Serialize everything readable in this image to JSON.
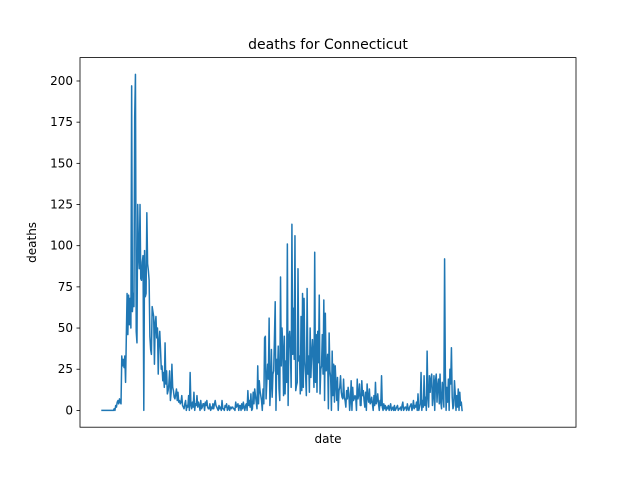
{
  "chart_data": {
    "type": "line",
    "title": "deaths for Connecticut",
    "xlabel": "date",
    "ylabel": "deaths",
    "x_tick_labels": [],
    "ylim": [
      -10.2,
      214.2
    ],
    "xlim": [
      -29,
      624
    ],
    "grid": false,
    "yticks": [
      0,
      25,
      50,
      75,
      100,
      125,
      150,
      175,
      200
    ],
    "color": "#1f77b4",
    "series": [
      {
        "name": "",
        "values": [
          0,
          0,
          0,
          0,
          0,
          0,
          0,
          0,
          0,
          0,
          0,
          0,
          0,
          0,
          0,
          0,
          1,
          0,
          3,
          2,
          5,
          6,
          4,
          7,
          5,
          4,
          33,
          27,
          31,
          26,
          33,
          17,
          45,
          71,
          46,
          70,
          52,
          68,
          50,
          197,
          60,
          71,
          63,
          178,
          204,
          48,
          41,
          125,
          95,
          86,
          125,
          80,
          79,
          90,
          94,
          0,
          97,
          69,
          71,
          120,
          89,
          85,
          79,
          45,
          37,
          34,
          63,
          60,
          57,
          28,
          53,
          57,
          44,
          50,
          22,
          42,
          48,
          37,
          25,
          27,
          18,
          23,
          14,
          41,
          16,
          24,
          10,
          12,
          16,
          24,
          6,
          11,
          28,
          14,
          12,
          8,
          7,
          10,
          13,
          6,
          11,
          5,
          6,
          4,
          5,
          9,
          3,
          2,
          1,
          4,
          6,
          0,
          3,
          2,
          9,
          0,
          23,
          3,
          1,
          5,
          2,
          11,
          0,
          4,
          3,
          9,
          2,
          5,
          3,
          0,
          6,
          1,
          2,
          4,
          4,
          0,
          5,
          3,
          6,
          2,
          1,
          1,
          4,
          0,
          2,
          1,
          4,
          1,
          4,
          6,
          3,
          2,
          1,
          0,
          3,
          1,
          2,
          0,
          6,
          1,
          1,
          0,
          3,
          2,
          4,
          0,
          1,
          3,
          0,
          2,
          1,
          2,
          2,
          1,
          1,
          0,
          5,
          2,
          3,
          4,
          0,
          3,
          3,
          0,
          4,
          1,
          5,
          2,
          0,
          3,
          4,
          0,
          12,
          3,
          6,
          2,
          10,
          0,
          1,
          11,
          4,
          13,
          9,
          5,
          1,
          27,
          4,
          18,
          12,
          9,
          6,
          0,
          13,
          4,
          44,
          45,
          7,
          18,
          28,
          19,
          56,
          3,
          15,
          37,
          8,
          22,
          24,
          44,
          66,
          0,
          31,
          22,
          39,
          13,
          6,
          81,
          27,
          50,
          37,
          9,
          45,
          10,
          30,
          17,
          101,
          3,
          44,
          48,
          37,
          14,
          113,
          34,
          62,
          31,
          106,
          12,
          15,
          17,
          86,
          30,
          33,
          10,
          57,
          12,
          71,
          14,
          68,
          30,
          22,
          9,
          74,
          22,
          33,
          11,
          50,
          20,
          35,
          43,
          30,
          14,
          96,
          17,
          46,
          11,
          48,
          29,
          70,
          10,
          25,
          27,
          46,
          22,
          67,
          6,
          59,
          24,
          25,
          34,
          1,
          47,
          24,
          20,
          0,
          36,
          9,
          28,
          5,
          27,
          16,
          6,
          20,
          0,
          12,
          14,
          21,
          11,
          8,
          7,
          19,
          8,
          6,
          2,
          12,
          7,
          14,
          10,
          0,
          6,
          18,
          0,
          14,
          6,
          7,
          9,
          8,
          0,
          19,
          7,
          10,
          16,
          3,
          3,
          18,
          9,
          12,
          6,
          2,
          11,
          0,
          16,
          8,
          5,
          13,
          4,
          5,
          8,
          4,
          0,
          9,
          3,
          17,
          4,
          6,
          10,
          4,
          0,
          6,
          3,
          21,
          2,
          0,
          4,
          1,
          3,
          0,
          2,
          1,
          3,
          0,
          2,
          4,
          0,
          1,
          2,
          0,
          3,
          0,
          1,
          2,
          3,
          0,
          1,
          1,
          2,
          0,
          3,
          5,
          0,
          1,
          2,
          2,
          0,
          4,
          1,
          0,
          2,
          3,
          4,
          0,
          2,
          6,
          1,
          3,
          2,
          5,
          0,
          10,
          0,
          2,
          4,
          23,
          0,
          6,
          2,
          21,
          3,
          8,
          0,
          36,
          8,
          2,
          21,
          11,
          19,
          22,
          3,
          9,
          21,
          0,
          18,
          22,
          5,
          15,
          19,
          4,
          22,
          5,
          1,
          17,
          10,
          2,
          92,
          22,
          0,
          14,
          5,
          19,
          0,
          25,
          16,
          38,
          8,
          1,
          3,
          18,
          10,
          0,
          9,
          2,
          13,
          0,
          11,
          3,
          5,
          0
        ]
      }
    ]
  }
}
